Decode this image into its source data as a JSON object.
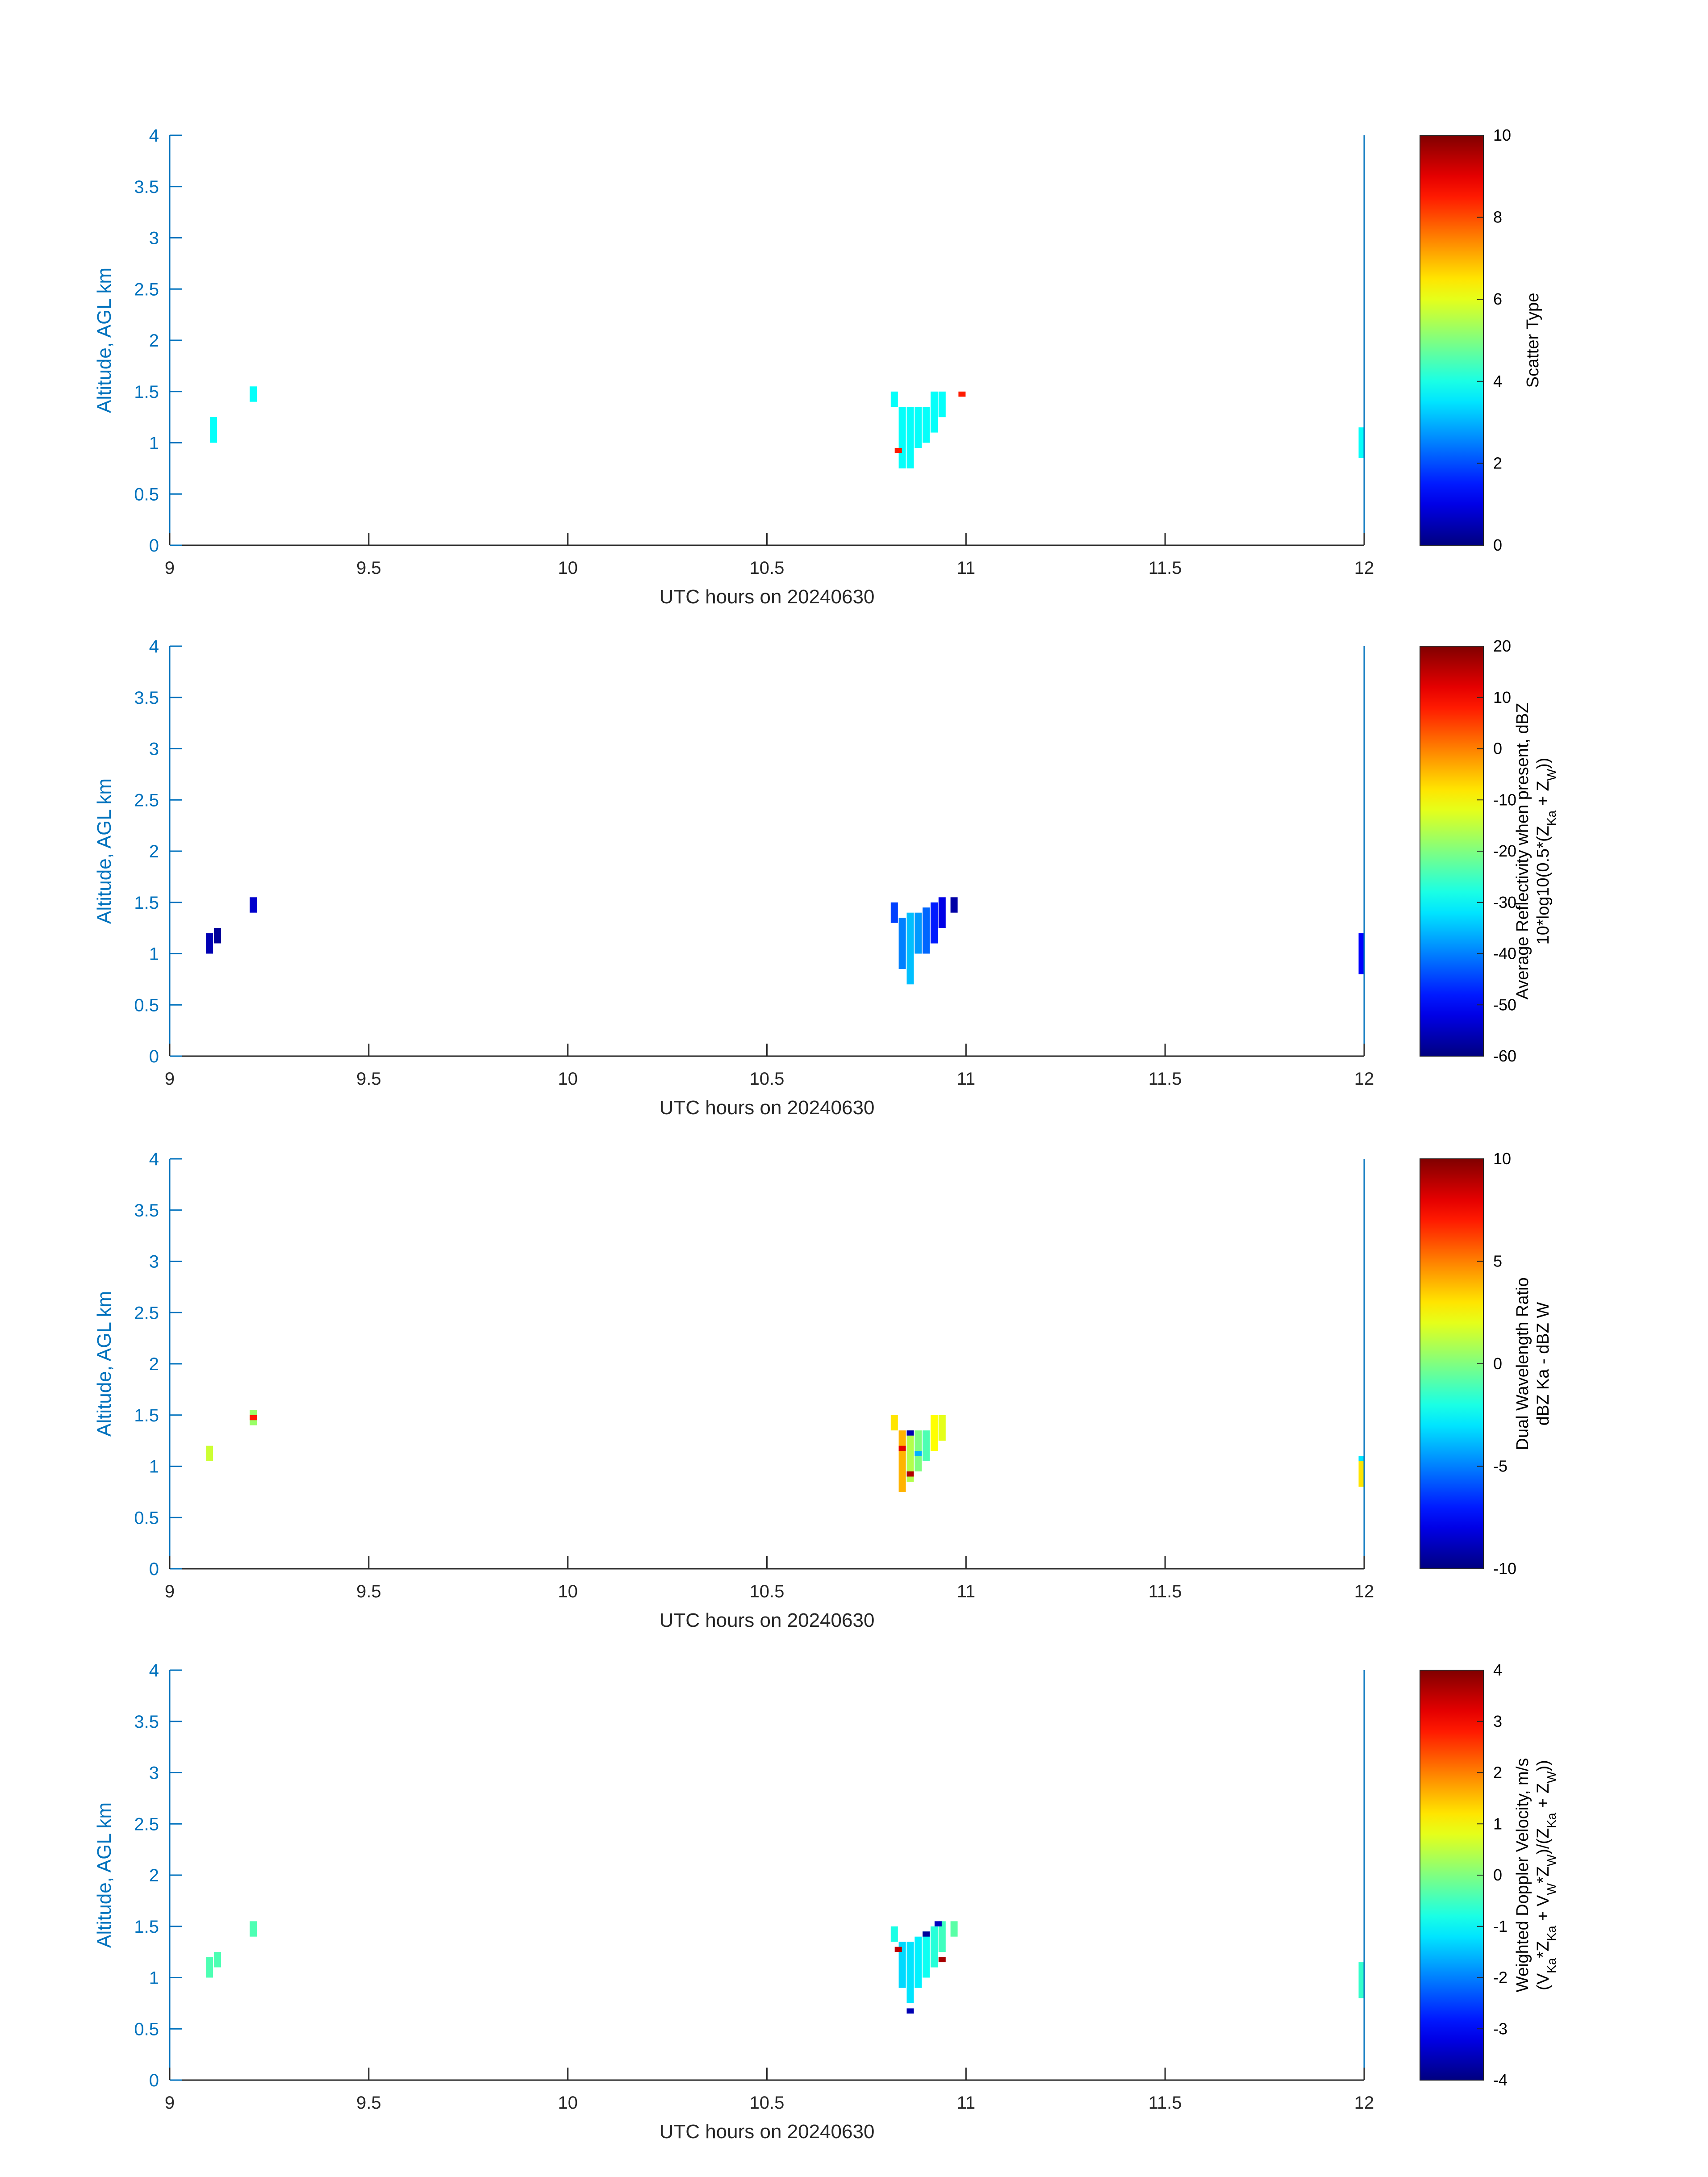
{
  "chart_data": [
    {
      "type": "heatmap",
      "xlabel": "UTC hours on 20240630",
      "ylabel": "Altitude, AGL km",
      "xlim": [
        9,
        12
      ],
      "ylim": [
        0,
        4
      ],
      "xticks": [
        "9",
        "9.5",
        "10",
        "10.5",
        "11",
        "11.5",
        "12"
      ],
      "yticks": [
        "0",
        "0.5",
        "1",
        "1.5",
        "2",
        "2.5",
        "3",
        "3.5",
        "4"
      ],
      "colorbar": {
        "label_lines": [
          "Scatter Type"
        ],
        "range": [
          0,
          10
        ],
        "ticks": [
          "0",
          "2",
          "4",
          "6",
          "8",
          "10"
        ],
        "colormap": "jet"
      },
      "cells": [
        {
          "x": 9.11,
          "y0": 1.0,
          "y1": 1.25,
          "v": 3.8
        },
        {
          "x": 9.21,
          "y0": 1.4,
          "y1": 1.55,
          "v": 3.8
        },
        {
          "x": 10.82,
          "y0": 1.35,
          "y1": 1.5,
          "v": 3.8
        },
        {
          "x": 10.84,
          "y0": 0.75,
          "y1": 1.35,
          "v": 3.8
        },
        {
          "x": 10.86,
          "y0": 0.75,
          "y1": 1.35,
          "v": 3.8
        },
        {
          "x": 10.88,
          "y0": 0.95,
          "y1": 1.35,
          "v": 3.8
        },
        {
          "x": 10.9,
          "y0": 1.0,
          "y1": 1.35,
          "v": 3.8
        },
        {
          "x": 10.92,
          "y0": 1.1,
          "y1": 1.5,
          "v": 3.8
        },
        {
          "x": 10.94,
          "y0": 1.25,
          "y1": 1.5,
          "v": 3.8
        },
        {
          "x": 10.83,
          "y0": 0.9,
          "y1": 0.95,
          "v": 8.5
        },
        {
          "x": 10.99,
          "y0": 1.45,
          "y1": 1.5,
          "v": 8.5
        },
        {
          "x": 11.995,
          "y0": 0.85,
          "y1": 1.15,
          "v": 3.8
        }
      ]
    },
    {
      "type": "heatmap",
      "xlabel": "UTC hours on 20240630",
      "ylabel": "Altitude, AGL km",
      "xlim": [
        9,
        12
      ],
      "ylim": [
        0,
        4
      ],
      "xticks": [
        "9",
        "9.5",
        "10",
        "10.5",
        "11",
        "11.5",
        "12"
      ],
      "yticks": [
        "0",
        "0.5",
        "1",
        "1.5",
        "2",
        "2.5",
        "3",
        "3.5",
        "4"
      ],
      "colorbar": {
        "label_lines": [
          "Average Reflectivity when present, dBZ",
          "10*log10(0.5*(Z_Ka + Z_W))"
        ],
        "range": [
          -60,
          20
        ],
        "ticks": [
          "-60",
          "-50",
          "-40",
          "-30",
          "-20",
          "-10",
          "0",
          "10",
          "20"
        ],
        "colormap": "jet"
      },
      "cells": [
        {
          "x": 9.1,
          "y0": 1.0,
          "y1": 1.2,
          "v": -56
        },
        {
          "x": 9.12,
          "y0": 1.1,
          "y1": 1.25,
          "v": -58
        },
        {
          "x": 9.21,
          "y0": 1.4,
          "y1": 1.55,
          "v": -54
        },
        {
          "x": 10.82,
          "y0": 1.3,
          "y1": 1.5,
          "v": -45
        },
        {
          "x": 10.84,
          "y0": 0.85,
          "y1": 1.35,
          "v": -40
        },
        {
          "x": 10.86,
          "y0": 0.7,
          "y1": 1.4,
          "v": -35
        },
        {
          "x": 10.88,
          "y0": 1.0,
          "y1": 1.4,
          "v": -38
        },
        {
          "x": 10.9,
          "y0": 1.0,
          "y1": 1.45,
          "v": -42
        },
        {
          "x": 10.92,
          "y0": 1.1,
          "y1": 1.5,
          "v": -48
        },
        {
          "x": 10.94,
          "y0": 1.25,
          "y1": 1.55,
          "v": -52
        },
        {
          "x": 10.97,
          "y0": 1.4,
          "y1": 1.55,
          "v": -57
        },
        {
          "x": 11.995,
          "y0": 0.8,
          "y1": 1.2,
          "v": -50
        }
      ]
    },
    {
      "type": "heatmap",
      "xlabel": "UTC hours on 20240630",
      "ylabel": "Altitude, AGL km",
      "xlim": [
        9,
        12
      ],
      "ylim": [
        0,
        4
      ],
      "xticks": [
        "9",
        "9.5",
        "10",
        "10.5",
        "11",
        "11.5",
        "12"
      ],
      "yticks": [
        "0",
        "0.5",
        "1",
        "1.5",
        "2",
        "2.5",
        "3",
        "3.5",
        "4"
      ],
      "colorbar": {
        "label_lines": [
          "Dual Wavelength Ratio",
          "dBZ Ka - dBZ W"
        ],
        "range": [
          -10,
          10
        ],
        "ticks": [
          "-10",
          "-5",
          "0",
          "5",
          "10"
        ],
        "colormap": "jet"
      },
      "cells": [
        {
          "x": 9.1,
          "y0": 1.05,
          "y1": 1.2,
          "v": 1.5
        },
        {
          "x": 9.21,
          "y0": 1.4,
          "y1": 1.55,
          "v": 0.5
        },
        {
          "x": 9.21,
          "y0": 1.45,
          "y1": 1.5,
          "v": 7.0
        },
        {
          "x": 10.82,
          "y0": 1.35,
          "y1": 1.5,
          "v": 3.0
        },
        {
          "x": 10.84,
          "y0": 0.75,
          "y1": 1.35,
          "v": 4.0
        },
        {
          "x": 10.86,
          "y0": 0.85,
          "y1": 1.35,
          "v": 1.0
        },
        {
          "x": 10.88,
          "y0": 0.95,
          "y1": 1.35,
          "v": 0.0
        },
        {
          "x": 10.9,
          "y0": 1.05,
          "y1": 1.35,
          "v": -1.0
        },
        {
          "x": 10.92,
          "y0": 1.15,
          "y1": 1.5,
          "v": 2.5
        },
        {
          "x": 10.94,
          "y0": 1.25,
          "y1": 1.5,
          "v": 2.0
        },
        {
          "x": 10.86,
          "y0": 1.3,
          "y1": 1.35,
          "v": -9.0
        },
        {
          "x": 10.88,
          "y0": 1.1,
          "y1": 1.15,
          "v": -4.0
        },
        {
          "x": 10.84,
          "y0": 1.15,
          "y1": 1.2,
          "v": 8.0
        },
        {
          "x": 10.86,
          "y0": 0.9,
          "y1": 0.95,
          "v": 9.0
        },
        {
          "x": 11.995,
          "y0": 0.8,
          "y1": 1.1,
          "v": 3.0
        },
        {
          "x": 11.995,
          "y0": 1.05,
          "y1": 1.1,
          "v": -3.0
        }
      ]
    },
    {
      "type": "heatmap",
      "xlabel": "UTC hours on 20240630",
      "ylabel": "Altitude, AGL km",
      "xlim": [
        9,
        12
      ],
      "ylim": [
        0,
        4
      ],
      "xticks": [
        "9",
        "9.5",
        "10",
        "10.5",
        "11",
        "11.5",
        "12"
      ],
      "yticks": [
        "0",
        "0.5",
        "1",
        "1.5",
        "2",
        "2.5",
        "3",
        "3.5",
        "4"
      ],
      "colorbar": {
        "label_lines": [
          "Weighted Doppler Velocity, m/s",
          "(V_Ka*Z_Ka + V_W*Z_W)/(Z_Ka + Z_W))"
        ],
        "range": [
          -4,
          4
        ],
        "ticks": [
          "-4",
          "-3",
          "-2",
          "-1",
          "0",
          "1",
          "2",
          "3",
          "4"
        ],
        "colormap": "jet"
      },
      "cells": [
        {
          "x": 9.1,
          "y0": 1.0,
          "y1": 1.2,
          "v": -0.4
        },
        {
          "x": 9.12,
          "y0": 1.1,
          "y1": 1.25,
          "v": -0.4
        },
        {
          "x": 9.21,
          "y0": 1.4,
          "y1": 1.55,
          "v": -0.4
        },
        {
          "x": 10.82,
          "y0": 1.35,
          "y1": 1.5,
          "v": -0.8
        },
        {
          "x": 10.84,
          "y0": 0.9,
          "y1": 1.35,
          "v": -1.3
        },
        {
          "x": 10.86,
          "y0": 0.75,
          "y1": 1.35,
          "v": -1.2
        },
        {
          "x": 10.88,
          "y0": 0.9,
          "y1": 1.4,
          "v": -1.1
        },
        {
          "x": 10.9,
          "y0": 1.0,
          "y1": 1.45,
          "v": -0.9
        },
        {
          "x": 10.92,
          "y0": 1.1,
          "y1": 1.5,
          "v": -0.7
        },
        {
          "x": 10.94,
          "y0": 1.25,
          "y1": 1.55,
          "v": -0.5
        },
        {
          "x": 10.97,
          "y0": 1.4,
          "y1": 1.55,
          "v": -0.3
        },
        {
          "x": 10.83,
          "y0": 1.25,
          "y1": 1.3,
          "v": 3.5
        },
        {
          "x": 10.94,
          "y0": 1.15,
          "y1": 1.2,
          "v": 3.7
        },
        {
          "x": 10.9,
          "y0": 1.4,
          "y1": 1.45,
          "v": -3.8
        },
        {
          "x": 10.93,
          "y0": 1.5,
          "y1": 1.55,
          "v": -3.5
        },
        {
          "x": 10.86,
          "y0": 0.65,
          "y1": 0.7,
          "v": -3.6
        },
        {
          "x": 11.995,
          "y0": 0.8,
          "y1": 1.15,
          "v": -0.6
        }
      ]
    }
  ]
}
